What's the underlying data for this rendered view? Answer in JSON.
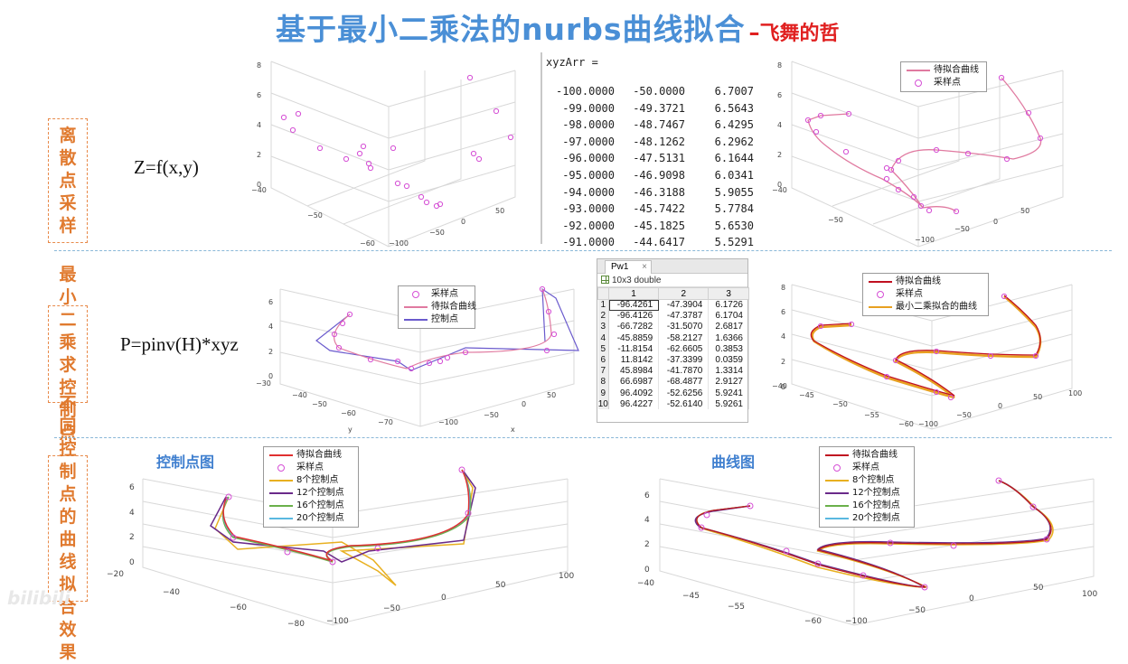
{
  "title": {
    "main": "基于最小二乘法的nurbs曲线拟合",
    "dash": "–",
    "author": "飞舞的哲"
  },
  "sections": [
    {
      "label": "离散点采样",
      "formula": "Z=f(x,y)"
    },
    {
      "label": "最小二乘求控制点",
      "formula": "P=pinv(H)*xyz"
    },
    {
      "label": "不同控制点的曲线拟合效果"
    }
  ],
  "console": {
    "header": "xyzArr =",
    "rows": [
      [
        "-100.0000",
        "-50.0000",
        "6.7007"
      ],
      [
        "-99.0000",
        "-49.3721",
        "6.5643"
      ],
      [
        "-98.0000",
        "-48.7467",
        "6.4295"
      ],
      [
        "-97.0000",
        "-48.1262",
        "6.2962"
      ],
      [
        "-96.0000",
        "-47.5131",
        "6.1644"
      ],
      [
        "-95.0000",
        "-46.9098",
        "6.0341"
      ],
      [
        "-94.0000",
        "-46.3188",
        "5.9055"
      ],
      [
        "-93.0000",
        "-45.7422",
        "5.7784"
      ],
      [
        "-92.0000",
        "-45.1825",
        "5.6530"
      ],
      [
        "-91.0000",
        "-44.6417",
        "5.5291"
      ]
    ]
  },
  "sheet": {
    "tab": "Pw1",
    "info": "10x3 double",
    "cols": [
      "1",
      "2",
      "3"
    ],
    "rows": [
      [
        "-96.4261",
        "-47.3904",
        "6.1726"
      ],
      [
        "-96.4126",
        "-47.3787",
        "6.1704"
      ],
      [
        "-66.7282",
        "-31.5070",
        "2.6817"
      ],
      [
        "-45.8859",
        "-58.2127",
        "1.6366"
      ],
      [
        "-11.8154",
        "-62.6605",
        "0.3853"
      ],
      [
        "11.8142",
        "-37.3399",
        "0.0359"
      ],
      [
        "45.8984",
        "-41.7870",
        "1.3314"
      ],
      [
        "66.6987",
        "-68.4877",
        "2.9127"
      ],
      [
        "96.4092",
        "-52.6256",
        "5.9241"
      ],
      [
        "96.4227",
        "-52.6140",
        "5.9261"
      ]
    ]
  },
  "legends": {
    "top_right": [
      "待拟合曲线",
      "采样点"
    ],
    "mid_left": [
      "采样点",
      "待拟合曲线",
      "控制点"
    ],
    "mid_right": [
      "待拟合曲线",
      "采样点",
      "最小二乘拟合的曲线"
    ],
    "bottom": [
      "待拟合曲线",
      "采样点",
      "8个控制点",
      "12个控制点",
      "16个控制点",
      "20个控制点"
    ]
  },
  "sub_labels": {
    "left": "控制点图",
    "right": "曲线图"
  },
  "colors": {
    "target": "#e03030",
    "sample": "#d54fd5",
    "control": "#6a5acd",
    "ls": "#e8a020",
    "c8": "#e8b020",
    "c12": "#6a2a8a",
    "c16": "#6ab04a",
    "c20": "#5ab8e0",
    "pink": "#e07aa0"
  },
  "watermark": "bilibili"
}
